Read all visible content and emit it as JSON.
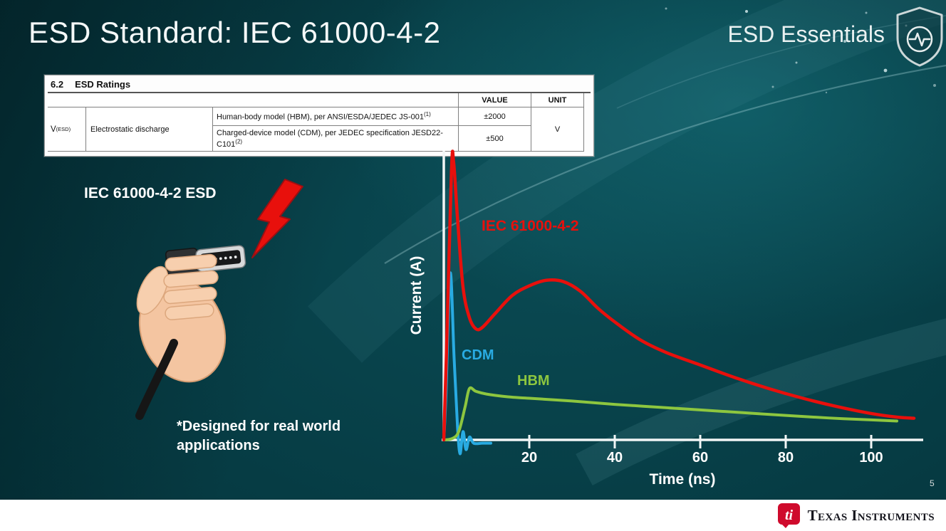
{
  "slide": {
    "title": "ESD Standard: IEC 61000-4-2",
    "series_brand": "ESD Essentials",
    "page_number": "5"
  },
  "footer": {
    "brand": "Texas Instruments"
  },
  "ratings_table": {
    "section_number": "6.2",
    "section_title": "ESD Ratings",
    "headers": {
      "value": "VALUE",
      "unit": "UNIT"
    },
    "param": {
      "symbol": "V",
      "symbol_sub": "(ESD)",
      "name": "Electrostatic discharge"
    },
    "rows": [
      {
        "desc": "Human-body model (HBM), per ANSI/ESDA/JEDEC JS-001",
        "desc_sup": "(1)",
        "value": "±2000"
      },
      {
        "desc": "Charged-device model (CDM), per JEDEC specification JESD22-C101",
        "desc_sup": "(2)",
        "value": "±500"
      }
    ],
    "unit": "V"
  },
  "illustration": {
    "caption": "IEC 61000-4-2 ESD",
    "note_line1": "*Designed for real world",
    "note_line2": "applications"
  },
  "chart": {
    "ylabel": "Current (A)",
    "xlabel": "Time (ns)",
    "labels": {
      "iec": "IEC 61000-4-2",
      "cdm": "CDM",
      "hbm": "HBM"
    }
  },
  "chart_data": {
    "type": "line",
    "xlabel": "Time (ns)",
    "ylabel": "Current (A)",
    "xlim": [
      0,
      110
    ],
    "ylim": [
      -0.05,
      1.05
    ],
    "x_ticks": [
      20,
      40,
      60,
      80,
      100
    ],
    "grid": false,
    "legend_position": "inline labels",
    "note": "y-axis unlabeled; values normalized to IEC 61000-4-2 peak = 1.0",
    "series": [
      {
        "key": "cdm",
        "name": "CDM",
        "color": "#29abe2",
        "points": [
          [
            0,
            0
          ],
          [
            0.5,
            0.16
          ],
          [
            1.5,
            0.6
          ],
          [
            2.4,
            0.3
          ],
          [
            3.2,
            0.05
          ],
          [
            3.8,
            -0.05
          ],
          [
            4.5,
            0.03
          ],
          [
            5.2,
            -0.035
          ],
          [
            6,
            0.01
          ],
          [
            7,
            -0.012
          ],
          [
            9,
            -0.012
          ],
          [
            11,
            -0.012
          ]
        ]
      },
      {
        "key": "hbm",
        "name": "HBM",
        "color": "#8dc63f",
        "points": [
          [
            0,
            0
          ],
          [
            2,
            0.005
          ],
          [
            3.5,
            0.03
          ],
          [
            5,
            0.12
          ],
          [
            6,
            0.185
          ],
          [
            7.5,
            0.175
          ],
          [
            10,
            0.165
          ],
          [
            15,
            0.155
          ],
          [
            20,
            0.15
          ],
          [
            30,
            0.14
          ],
          [
            40,
            0.128
          ],
          [
            50,
            0.118
          ],
          [
            60,
            0.108
          ],
          [
            70,
            0.098
          ],
          [
            80,
            0.088
          ],
          [
            90,
            0.079
          ],
          [
            100,
            0.072
          ],
          [
            106,
            0.068
          ]
        ]
      },
      {
        "key": "iec",
        "name": "IEC 61000-4-2",
        "color": "#e8100c",
        "points": [
          [
            0,
            0
          ],
          [
            0.6,
            0.3
          ],
          [
            1.8,
            0.97
          ],
          [
            2.3,
            1.0
          ],
          [
            3.2,
            0.8
          ],
          [
            4.5,
            0.55
          ],
          [
            6,
            0.44
          ],
          [
            7.5,
            0.4
          ],
          [
            9,
            0.405
          ],
          [
            12,
            0.455
          ],
          [
            16,
            0.52
          ],
          [
            20,
            0.555
          ],
          [
            24,
            0.575
          ],
          [
            28,
            0.57
          ],
          [
            32,
            0.535
          ],
          [
            36,
            0.475
          ],
          [
            40,
            0.425
          ],
          [
            46,
            0.36
          ],
          [
            52,
            0.315
          ],
          [
            60,
            0.27
          ],
          [
            68,
            0.225
          ],
          [
            76,
            0.185
          ],
          [
            84,
            0.15
          ],
          [
            92,
            0.12
          ],
          [
            100,
            0.095
          ],
          [
            106,
            0.082
          ],
          [
            110,
            0.078
          ]
        ]
      }
    ]
  },
  "colors": {
    "background_teal": "#07424b",
    "footer_bg": "#ffffff",
    "ti_red": "#cf0a2c",
    "iec_red": "#e8100c",
    "cdm_cyan": "#29abe2",
    "hbm_green": "#8dc63f"
  },
  "icons": {
    "shield": "shield-pulse-icon",
    "bolt": "lightning-bolt-icon",
    "ti_bug": "ti-logo-icon"
  }
}
